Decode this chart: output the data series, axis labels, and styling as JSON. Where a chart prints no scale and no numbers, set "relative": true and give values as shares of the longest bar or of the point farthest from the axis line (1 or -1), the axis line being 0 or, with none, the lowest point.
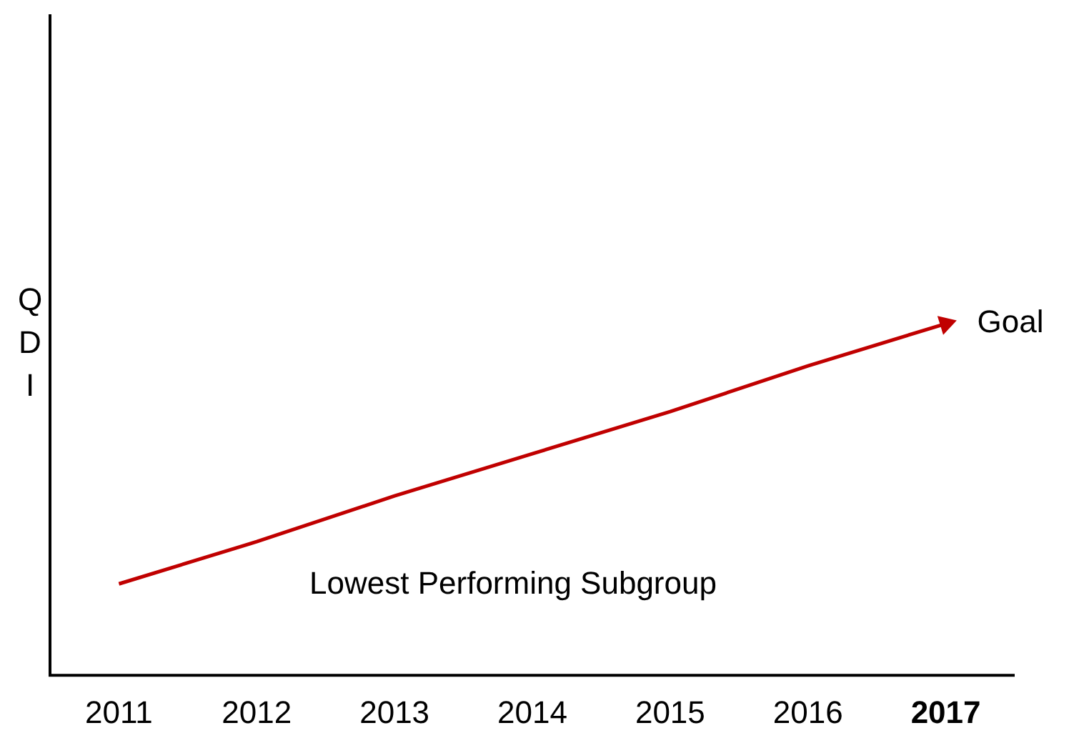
{
  "chart_data": {
    "type": "line",
    "ylabel": "QDI",
    "relative": true,
    "categories": [
      "2011",
      "2012",
      "2013",
      "2014",
      "2015",
      "2016",
      "2017"
    ],
    "series": [
      {
        "color": "#c00000",
        "values": [
          0.26,
          0.38,
          0.51,
          0.63,
          0.75,
          0.88,
          1
        ]
      }
    ],
    "annotations": [
      {
        "text": "Goal",
        "x": "2017",
        "y": 1
      },
      "Lowest Performing Subgroup"
    ],
    "grid": false,
    "legend": false,
    "line_style": "solid"
  }
}
